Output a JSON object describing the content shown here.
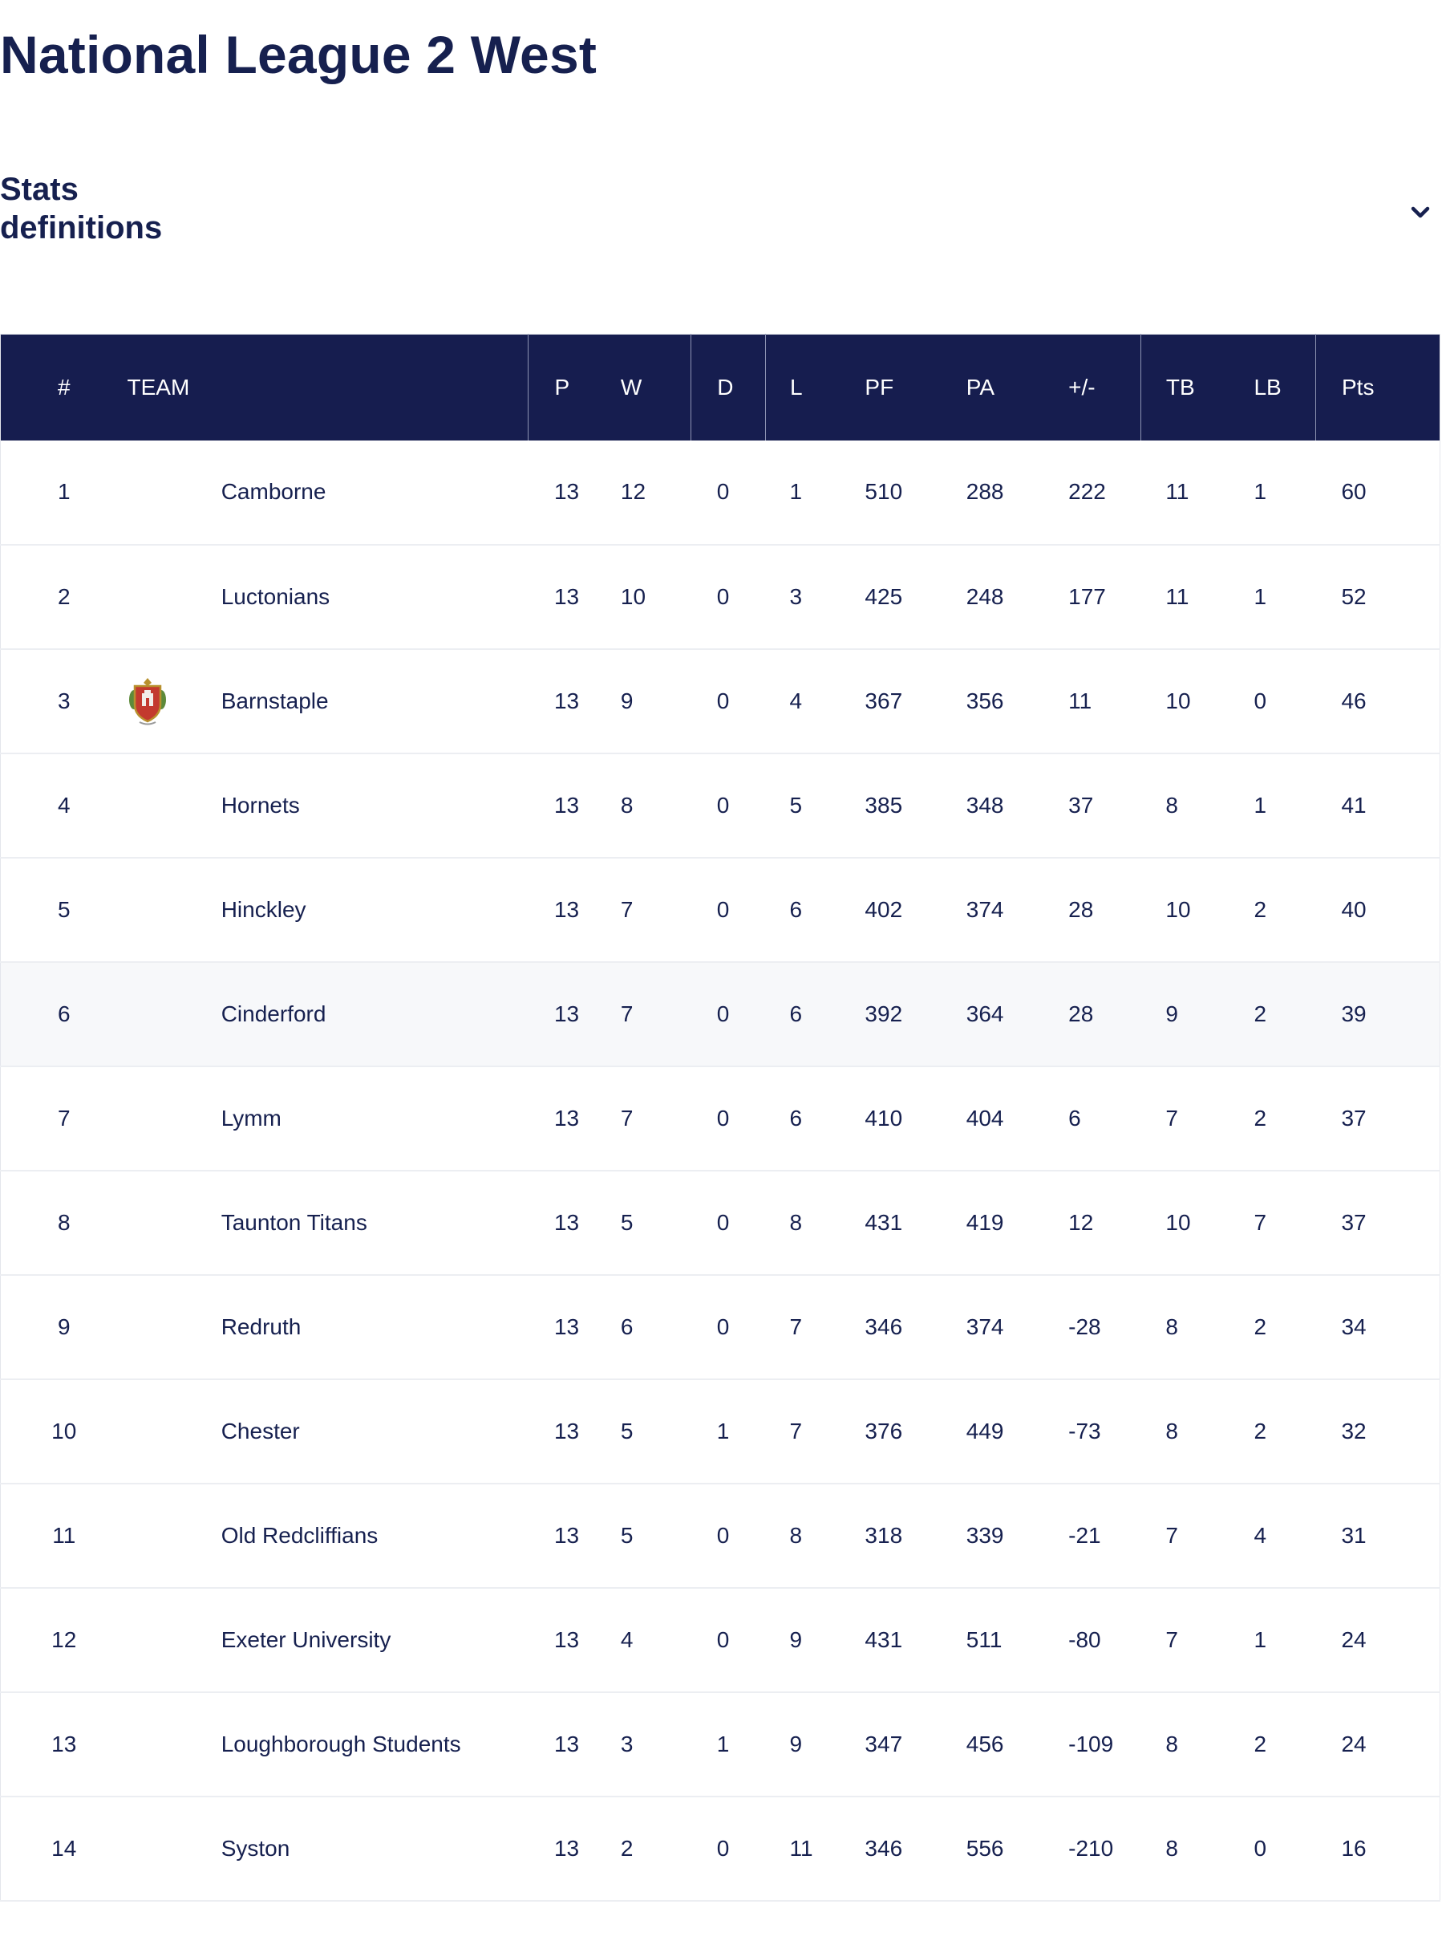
{
  "page": {
    "title": "National League 2 West",
    "stats_definitions_label": "Stats definitions"
  },
  "table": {
    "columns": [
      "#",
      "TEAM",
      "P",
      "W",
      "D",
      "L",
      "PF",
      "PA",
      "+/-",
      "TB",
      "LB",
      "Pts"
    ],
    "rows": [
      {
        "pos": "1",
        "team": "Camborne",
        "p": "13",
        "w": "12",
        "d": "0",
        "l": "1",
        "pf": "510",
        "pa": "288",
        "diff": "222",
        "tb": "11",
        "lb": "1",
        "pts": "60"
      },
      {
        "pos": "2",
        "team": "Luctonians",
        "p": "13",
        "w": "10",
        "d": "0",
        "l": "3",
        "pf": "425",
        "pa": "248",
        "diff": "177",
        "tb": "11",
        "lb": "1",
        "pts": "52"
      },
      {
        "pos": "3",
        "team": "Barnstaple",
        "p": "13",
        "w": "9",
        "d": "0",
        "l": "4",
        "pf": "367",
        "pa": "356",
        "diff": "11",
        "tb": "10",
        "lb": "0",
        "pts": "46",
        "crest": "barnstaple-crest-icon"
      },
      {
        "pos": "4",
        "team": "Hornets",
        "p": "13",
        "w": "8",
        "d": "0",
        "l": "5",
        "pf": "385",
        "pa": "348",
        "diff": "37",
        "tb": "8",
        "lb": "1",
        "pts": "41"
      },
      {
        "pos": "5",
        "team": "Hinckley",
        "p": "13",
        "w": "7",
        "d": "0",
        "l": "6",
        "pf": "402",
        "pa": "374",
        "diff": "28",
        "tb": "10",
        "lb": "2",
        "pts": "40"
      },
      {
        "pos": "6",
        "team": "Cinderford",
        "p": "13",
        "w": "7",
        "d": "0",
        "l": "6",
        "pf": "392",
        "pa": "364",
        "diff": "28",
        "tb": "9",
        "lb": "2",
        "pts": "39",
        "highlighted": true
      },
      {
        "pos": "7",
        "team": "Lymm",
        "p": "13",
        "w": "7",
        "d": "0",
        "l": "6",
        "pf": "410",
        "pa": "404",
        "diff": "6",
        "tb": "7",
        "lb": "2",
        "pts": "37"
      },
      {
        "pos": "8",
        "team": "Taunton Titans",
        "p": "13",
        "w": "5",
        "d": "0",
        "l": "8",
        "pf": "431",
        "pa": "419",
        "diff": "12",
        "tb": "10",
        "lb": "7",
        "pts": "37"
      },
      {
        "pos": "9",
        "team": "Redruth",
        "p": "13",
        "w": "6",
        "d": "0",
        "l": "7",
        "pf": "346",
        "pa": "374",
        "diff": "-28",
        "tb": "8",
        "lb": "2",
        "pts": "34"
      },
      {
        "pos": "10",
        "team": "Chester",
        "p": "13",
        "w": "5",
        "d": "1",
        "l": "7",
        "pf": "376",
        "pa": "449",
        "diff": "-73",
        "tb": "8",
        "lb": "2",
        "pts": "32"
      },
      {
        "pos": "11",
        "team": "Old Redcliffians",
        "p": "13",
        "w": "5",
        "d": "0",
        "l": "8",
        "pf": "318",
        "pa": "339",
        "diff": "-21",
        "tb": "7",
        "lb": "4",
        "pts": "31"
      },
      {
        "pos": "12",
        "team": "Exeter University",
        "p": "13",
        "w": "4",
        "d": "0",
        "l": "9",
        "pf": "431",
        "pa": "511",
        "diff": "-80",
        "tb": "7",
        "lb": "1",
        "pts": "24"
      },
      {
        "pos": "13",
        "team": "Loughborough Students",
        "p": "13",
        "w": "3",
        "d": "1",
        "l": "9",
        "pf": "347",
        "pa": "456",
        "diff": "-109",
        "tb": "8",
        "lb": "2",
        "pts": "24"
      },
      {
        "pos": "14",
        "team": "Syston",
        "p": "13",
        "w": "2",
        "d": "0",
        "l": "11",
        "pf": "346",
        "pa": "556",
        "diff": "-210",
        "tb": "8",
        "lb": "0",
        "pts": "16"
      }
    ]
  },
  "colors": {
    "navy": "#161d4f",
    "text": "#16204f",
    "row_highlight": "#f7f8fa",
    "row_border": "#eceef2"
  },
  "icons": {
    "expand": "chevron-down-icon"
  }
}
